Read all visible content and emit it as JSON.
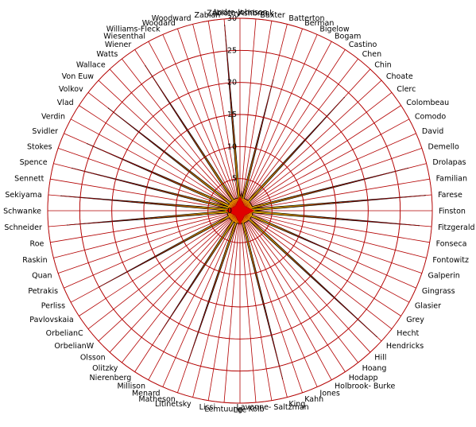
{
  "chart_data": {
    "type": "radar",
    "title": "",
    "rlim": [
      0,
      30
    ],
    "r_ticks": [
      5,
      10,
      15,
      20,
      25,
      30
    ],
    "grid": true,
    "categories": [
      "Andre-Johnson",
      "Ashbrook",
      "Baxter",
      "Batterton",
      "Berman",
      "Bigelow",
      "Bogam",
      "Castino",
      "Chen",
      "Chin",
      "Choate",
      "Clerc",
      "Colombeau",
      "Comodo",
      "David",
      "Demello",
      "Drolapas",
      "Familian",
      "Farese",
      "Finston",
      "Fitzgerald",
      "Fonseca",
      "Fontowitz",
      "Galperin",
      "Gingrass",
      "Glasier",
      "Grey",
      "Hecht",
      "Hendricks",
      "Hill",
      "Hoang",
      "Hodapp",
      "Holbrook- Burke",
      "Jones",
      "Kahn",
      "King",
      "Lavonne- Saltzman",
      "Kolb",
      "Lee",
      "Lemtuung",
      "Lissi",
      "Litinetsky",
      "Matheson",
      "Menard",
      "Millison",
      "Nierenberg",
      "Olitzky",
      "Olsson",
      "OrbelianW",
      "OrbelianC",
      "Pavlovskaia",
      "Perliss",
      "Petrakis",
      "Quan",
      "Raskin",
      "Roe",
      "Schneider",
      "Schwanke",
      "Sekiyama",
      "Sennett",
      "Spence",
      "Stokes",
      "Svidler",
      "Verdin",
      "Vlad",
      "Volkov",
      "Von Euw",
      "Wallace",
      "Watts",
      "Wiener",
      "Wiesenthal",
      "Williams-Fleck",
      "Woodard",
      "Woodward",
      "Zabian",
      "Zablotny"
    ],
    "series": [
      {
        "color": "#ffff00",
        "values": [
          2,
          3,
          2,
          21,
          2,
          2,
          2,
          2,
          2,
          24,
          2,
          2,
          2,
          2,
          2,
          2,
          27,
          2,
          29,
          2,
          28,
          2,
          2,
          2,
          17,
          2,
          2,
          2,
          29,
          2,
          2,
          2,
          2,
          2,
          2,
          27,
          2,
          2,
          2,
          2,
          2,
          2,
          25,
          2,
          2,
          23,
          2,
          2,
          2,
          2,
          2,
          25,
          2,
          2,
          2,
          2,
          27,
          2,
          28,
          2,
          27,
          2,
          26,
          2,
          2,
          26,
          2,
          2,
          2,
          27,
          2,
          2,
          2,
          2,
          2,
          29
        ]
      }
    ],
    "axis_label_values": [
      "0",
      "5",
      "10",
      "15",
      "20",
      "25",
      "30"
    ]
  }
}
